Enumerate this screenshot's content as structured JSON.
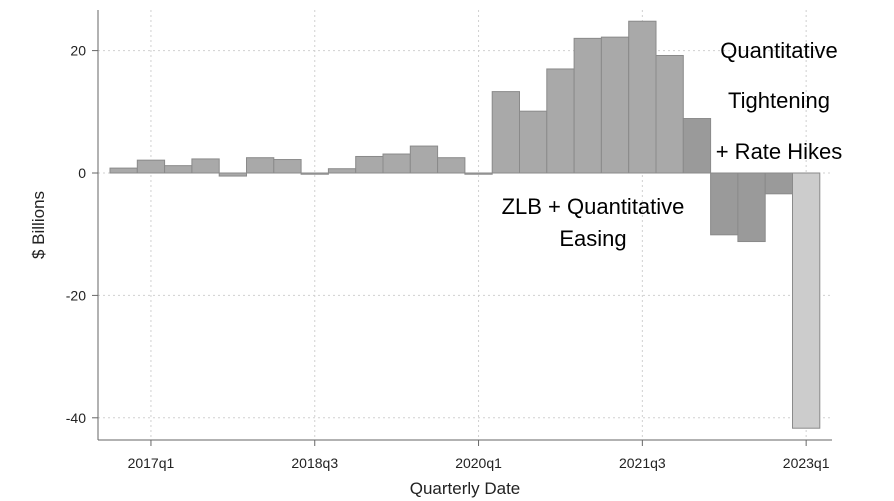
{
  "chart_data": {
    "type": "bar",
    "xlabel": "Quarterly Date",
    "ylabel": "$ Billions",
    "ylim": [
      -42,
      26
    ],
    "yticks": [
      -40,
      -20,
      0,
      20
    ],
    "grid": true,
    "x_tick_labels": [
      "2017q1",
      "2018q3",
      "2020q1",
      "2021q3",
      "2023q1"
    ],
    "x_tick_indices": [
      1,
      7,
      13,
      19,
      25
    ],
    "categories": [
      "2016q4",
      "2017q1",
      "2017q2",
      "2017q3",
      "2017q4",
      "2018q1",
      "2018q2",
      "2018q3",
      "2018q4",
      "2019q1",
      "2019q2",
      "2019q3",
      "2019q4",
      "2020q1",
      "2020q2",
      "2020q3",
      "2020q4",
      "2021q1",
      "2021q2",
      "2021q3",
      "2021q4",
      "2022q1",
      "2022q2",
      "2022q3",
      "2022q4",
      "2023q1"
    ],
    "values": [
      0.8,
      2.1,
      1.2,
      2.3,
      -0.5,
      2.5,
      2.2,
      -0.2,
      0.7,
      2.7,
      3.1,
      4.4,
      2.5,
      -0.2,
      13.3,
      10.1,
      17.0,
      22.0,
      22.2,
      24.8,
      19.2,
      8.9,
      -10.1,
      -11.2,
      -3.4,
      -41.7
    ],
    "bar_colors": {
      "normal": "#a9a9a9",
      "tightening": "#9a9a9a",
      "last": "#cccccc",
      "edge": "#8a8a8a"
    },
    "annotations": {
      "zlb": [
        "ZLB + Quantitative",
        "Easing"
      ],
      "qt": [
        "Quantitative",
        "Tightening",
        "+ Rate Hikes"
      ]
    }
  }
}
